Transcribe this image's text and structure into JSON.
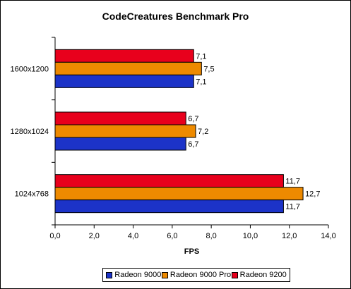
{
  "chart_data": {
    "type": "bar",
    "orientation": "horizontal",
    "title": "CodeCreatures Benchmark Pro",
    "xlabel": "FPS",
    "ylabel": "",
    "xlim": [
      0,
      14
    ],
    "x_ticks": [
      "0,0",
      "2,0",
      "4,0",
      "6,0",
      "8,0",
      "10,0",
      "12,0",
      "14,0"
    ],
    "categories": [
      "1600x1200",
      "1280x1024",
      "1024x768"
    ],
    "series": [
      {
        "name": "Radeon 9200",
        "color": "#e8001c",
        "values": [
          7.1,
          6.7,
          11.7
        ],
        "labels": [
          "7,1",
          "6,7",
          "11,7"
        ]
      },
      {
        "name": "Radeon 9000 Pro",
        "color": "#ee8a00",
        "values": [
          7.5,
          7.2,
          12.7
        ],
        "labels": [
          "7,5",
          "7,2",
          "12,7"
        ]
      },
      {
        "name": "Radeon 9000",
        "color": "#1c33c8",
        "values": [
          7.1,
          6.7,
          11.7
        ],
        "labels": [
          "7,1",
          "6,7",
          "11,7"
        ]
      }
    ],
    "legend": [
      "Radeon 9000",
      "Radeon 9000 Pro",
      "Radeon 9200"
    ],
    "legend_position": "bottom",
    "grid": false
  }
}
